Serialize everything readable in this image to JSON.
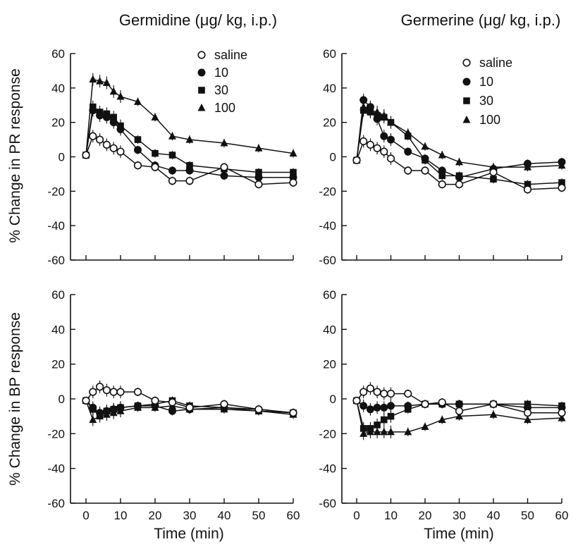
{
  "figure": {
    "column_titles": [
      "Germidine (μg/ kg, i.p.)",
      "Germerine (μg/ kg, i.p.)"
    ],
    "row_labels": [
      "% Change in PR response",
      "% Change in BP response"
    ],
    "xlabel": "Time (min)",
    "legend": [
      "saline",
      "10",
      "30",
      "100"
    ]
  },
  "chart_data": [
    {
      "type": "line",
      "panel": "Germidine",
      "ylabel": "% Change in PR response",
      "xlabel": "",
      "xlim": [
        0,
        60
      ],
      "ylim": [
        -60,
        60
      ],
      "xticks": [
        0,
        10,
        20,
        30,
        40,
        50,
        60
      ],
      "yticks": [
        60,
        40,
        20,
        0,
        -20,
        -40,
        -60
      ],
      "show_xtick_labels": false,
      "legend": "top-right",
      "series": [
        {
          "name": "saline",
          "marker": "circle-open",
          "x": [
            0,
            2,
            4,
            6,
            8,
            10,
            15,
            20,
            25,
            30,
            40,
            50,
            60
          ],
          "y": [
            1,
            12,
            10,
            7,
            5,
            3,
            -5,
            -6,
            -14,
            -14,
            -6,
            -16,
            -15
          ]
        },
        {
          "name": "10",
          "marker": "circle-filled",
          "x": [
            0,
            2,
            4,
            6,
            8,
            10,
            15,
            20,
            25,
            30,
            40,
            50,
            60
          ],
          "y": [
            1,
            27,
            24,
            23,
            20,
            16,
            4,
            -5,
            -8,
            -8,
            -11,
            -12,
            -12
          ]
        },
        {
          "name": "30",
          "marker": "square-filled",
          "x": [
            0,
            2,
            4,
            6,
            8,
            10,
            15,
            20,
            25,
            30,
            40,
            50,
            60
          ],
          "y": [
            1,
            29,
            26,
            25,
            23,
            18,
            10,
            2,
            1,
            -5,
            -7,
            -9,
            -9
          ]
        },
        {
          "name": "100",
          "marker": "triangle-filled",
          "x": [
            0,
            2,
            4,
            6,
            8,
            10,
            15,
            20,
            25,
            30,
            40,
            50,
            60
          ],
          "y": [
            1,
            45,
            44,
            43,
            38,
            35,
            32,
            23,
            12,
            10,
            8,
            5,
            2
          ]
        }
      ]
    },
    {
      "type": "line",
      "panel": "Germerine",
      "ylabel": "% Change in PR response",
      "xlabel": "",
      "xlim": [
        0,
        60
      ],
      "ylim": [
        -60,
        60
      ],
      "xticks": [
        0,
        10,
        20,
        30,
        40,
        50,
        60
      ],
      "yticks": [
        60,
        40,
        20,
        0,
        -20,
        -40,
        -60
      ],
      "show_xtick_labels": false,
      "legend": "top-right",
      "series": [
        {
          "name": "saline",
          "marker": "circle-open",
          "x": [
            0,
            2,
            4,
            6,
            8,
            10,
            15,
            20,
            25,
            30,
            40,
            50,
            60
          ],
          "y": [
            -2,
            9,
            7,
            5,
            3,
            -1,
            -8,
            -8,
            -16,
            -16,
            -9,
            -19,
            -18
          ]
        },
        {
          "name": "10",
          "marker": "circle-filled",
          "x": [
            0,
            2,
            4,
            6,
            8,
            10,
            15,
            20,
            25,
            30,
            40,
            50,
            60
          ],
          "y": [
            -2,
            33,
            29,
            22,
            12,
            10,
            3,
            -1,
            -8,
            -12,
            -7,
            -4,
            -3
          ]
        },
        {
          "name": "30",
          "marker": "square-filled",
          "x": [
            0,
            2,
            4,
            6,
            8,
            10,
            15,
            20,
            25,
            30,
            40,
            50,
            60
          ],
          "y": [
            -2,
            27,
            26,
            24,
            23,
            20,
            12,
            -2,
            -11,
            -11,
            -13,
            -16,
            -15
          ]
        },
        {
          "name": "100",
          "marker": "triangle-filled",
          "x": [
            0,
            2,
            4,
            6,
            8,
            10,
            15,
            20,
            25,
            30,
            40,
            50,
            60
          ],
          "y": [
            -2,
            29,
            27,
            26,
            24,
            20,
            14,
            6,
            1,
            -3,
            -6,
            -6,
            -5
          ]
        }
      ]
    },
    {
      "type": "line",
      "panel": "Germidine",
      "ylabel": "% Change in BP response",
      "xlabel": "Time (min)",
      "xlim": [
        0,
        60
      ],
      "ylim": [
        -60,
        60
      ],
      "xticks": [
        0,
        10,
        20,
        30,
        40,
        50,
        60
      ],
      "yticks": [
        60,
        40,
        20,
        0,
        -20,
        -40,
        -60
      ],
      "show_xtick_labels": true,
      "series": [
        {
          "name": "saline",
          "marker": "circle-open",
          "x": [
            0,
            2,
            4,
            6,
            8,
            10,
            15,
            20,
            25,
            30,
            40,
            50,
            60
          ],
          "y": [
            -1,
            4,
            7,
            5,
            4,
            4,
            4,
            -1,
            -2,
            -5,
            -3,
            -6,
            -8
          ]
        },
        {
          "name": "10",
          "marker": "circle-filled",
          "x": [
            0,
            2,
            4,
            6,
            8,
            10,
            15,
            20,
            25,
            30,
            40,
            50,
            60
          ],
          "y": [
            -1,
            -5,
            -8,
            -7,
            -6,
            -5,
            -4,
            -4,
            -7,
            -6,
            -5,
            -6,
            -8
          ]
        },
        {
          "name": "30",
          "marker": "square-filled",
          "x": [
            0,
            2,
            4,
            6,
            8,
            10,
            15,
            20,
            25,
            30,
            40,
            50,
            60
          ],
          "y": [
            -1,
            -6,
            -9,
            -7,
            -6,
            -5,
            -4,
            -3,
            -1,
            -4,
            -5,
            -7,
            -8
          ]
        },
        {
          "name": "100",
          "marker": "triangle-filled",
          "x": [
            0,
            2,
            4,
            6,
            8,
            10,
            15,
            20,
            25,
            30,
            40,
            50,
            60
          ],
          "y": [
            -1,
            -12,
            -10,
            -9,
            -8,
            -7,
            -5,
            -5,
            -4,
            -6,
            -6,
            -7,
            -9
          ]
        }
      ]
    },
    {
      "type": "line",
      "panel": "Germerine",
      "ylabel": "% Change in BP response",
      "xlabel": "Time (min)",
      "xlim": [
        0,
        60
      ],
      "ylim": [
        -60,
        60
      ],
      "xticks": [
        0,
        10,
        20,
        30,
        40,
        50,
        60
      ],
      "yticks": [
        60,
        40,
        20,
        0,
        -20,
        -40,
        -60
      ],
      "show_xtick_labels": true,
      "series": [
        {
          "name": "saline",
          "marker": "circle-open",
          "x": [
            0,
            2,
            4,
            6,
            8,
            10,
            15,
            20,
            25,
            30,
            40,
            50,
            60
          ],
          "y": [
            -1,
            4,
            6,
            4,
            3,
            3,
            3,
            -3,
            -2,
            -7,
            -3,
            -8,
            -8
          ]
        },
        {
          "name": "10",
          "marker": "circle-filled",
          "x": [
            0,
            2,
            4,
            6,
            8,
            10,
            15,
            20,
            25,
            30,
            40,
            50,
            60
          ],
          "y": [
            -1,
            -4,
            -6,
            -5,
            -5,
            -4,
            -4,
            -3,
            -3,
            -3,
            -3,
            -5,
            -5
          ]
        },
        {
          "name": "30",
          "marker": "square-filled",
          "x": [
            0,
            2,
            4,
            6,
            8,
            10,
            15,
            20,
            25,
            30,
            40,
            50,
            60
          ],
          "y": [
            -1,
            -17,
            -17,
            -15,
            -12,
            -10,
            -6,
            -3,
            -3,
            -3,
            -3,
            -3,
            -4
          ]
        },
        {
          "name": "100",
          "marker": "triangle-filled",
          "x": [
            0,
            2,
            4,
            6,
            8,
            10,
            15,
            20,
            25,
            30,
            40,
            50,
            60
          ],
          "y": [
            -1,
            -20,
            -19,
            -19,
            -19,
            -19,
            -19,
            -16,
            -12,
            -10,
            -9,
            -12,
            -11
          ]
        }
      ]
    }
  ]
}
